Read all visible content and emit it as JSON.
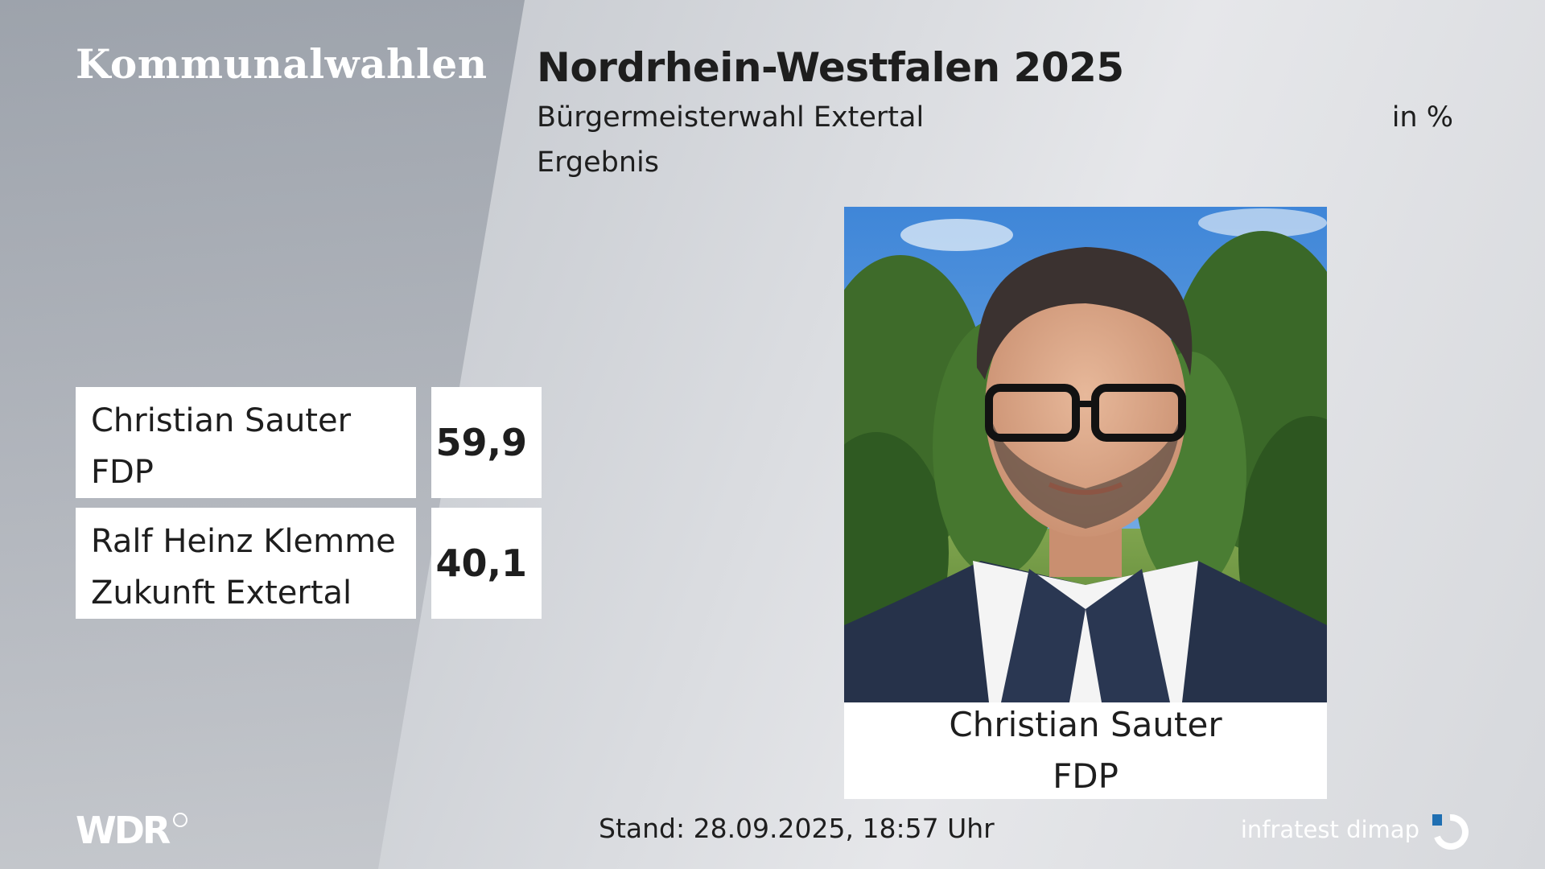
{
  "header": {
    "brand": "Kommunalwahlen",
    "title": "Nordrhein-Westfalen 2025",
    "subtitle": "Bürgermeisterwahl Extertal",
    "unit": "in %",
    "subtitle2": "Ergebnis"
  },
  "results": [
    {
      "name": "Christian Sauter",
      "party": "FDP",
      "value": "59,9"
    },
    {
      "name": "Ralf Heinz Klemme",
      "party": "Zukunft Extertal",
      "value": "40,1"
    }
  ],
  "winner": {
    "photo": "candidate-portrait",
    "name": "Christian Sauter",
    "party": "FDP"
  },
  "footer": {
    "broadcaster": "WDR",
    "stand": "Stand: 28.09.2025, 18:57 Uhr",
    "pollster": "infratest dimap"
  },
  "colors": {
    "text": "#1e1e1e",
    "box": "#ffffff",
    "background": "#d6d8dc"
  }
}
